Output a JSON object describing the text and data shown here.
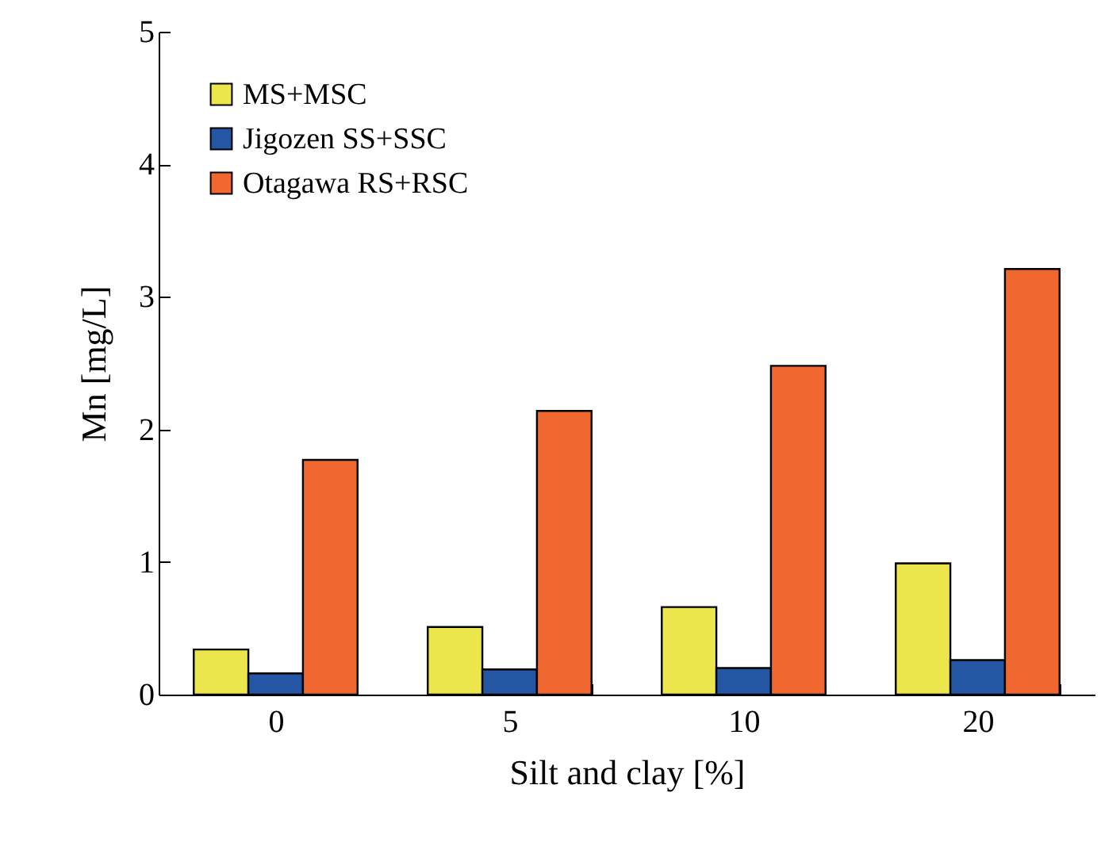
{
  "chart_data": {
    "type": "bar",
    "xlabel": "Silt and clay [%]",
    "ylabel": "Mn  [mg/L]",
    "categories": [
      "0",
      "5",
      "10",
      "20"
    ],
    "series": [
      {
        "name": "MS+MSC",
        "color": "#ebe64c",
        "values": [
          0.34,
          0.51,
          0.66,
          0.99
        ]
      },
      {
        "name": "Jigozen SS+SSC",
        "color": "#2456a4",
        "values": [
          0.16,
          0.19,
          0.2,
          0.26
        ]
      },
      {
        "name": "Otagawa RS+RSC",
        "color": "#f06830",
        "values": [
          1.77,
          2.14,
          2.48,
          3.21
        ]
      }
    ],
    "ylim": [
      0,
      5
    ],
    "yticks": [
      0,
      1,
      2,
      3,
      4,
      5
    ],
    "grid": false,
    "legend": "top left"
  }
}
